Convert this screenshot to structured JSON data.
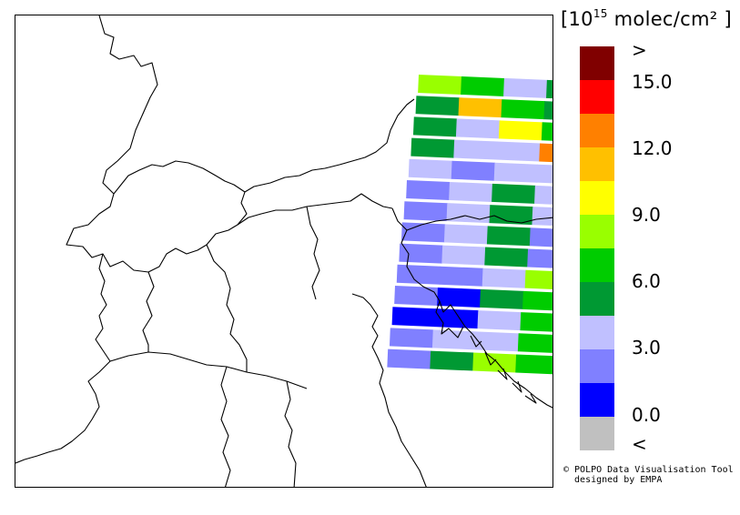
{
  "legend": {
    "title_open": "[10",
    "title_exp": "15",
    "title_rest": " molec/cm² ]",
    "colors": [
      "#800000",
      "#ff0000",
      "#ff8000",
      "#ffc000",
      "#ffff00",
      "#99ff00",
      "#00cc00",
      "#009933",
      "#c0c0ff",
      "#8080ff",
      "#0000ff",
      "#c0c0c0"
    ],
    "labels": [
      ">",
      "15.0",
      "12.0",
      "9.0",
      "6.0",
      "3.0",
      "0.0",
      "<"
    ]
  },
  "credit": {
    "line1": "© POLPO Data Visualisation Tool",
    "line2": "  designed by EMPA"
  },
  "swaths": [
    [
      "#99ff00",
      "#00cc00",
      "#c0c0ff",
      "#009933"
    ],
    [
      "#009933",
      "#ffc000",
      "#00cc00",
      "#009933"
    ],
    [
      "#009933",
      "#c0c0ff",
      "#ffff00",
      "#00cc00"
    ],
    [
      "#009933",
      "#c0c0ff",
      "#c0c0ff",
      "#ff8000"
    ],
    [
      "#c0c0ff",
      "#8080ff",
      "#c0c0ff",
      "#c0c0ff"
    ],
    [
      "#8080ff",
      "#c0c0ff",
      "#009933",
      "#c0c0ff"
    ],
    [
      "#8080ff",
      "#c0c0ff",
      "#009933",
      "#c0c0ff"
    ],
    [
      "#8080ff",
      "#c0c0ff",
      "#009933",
      "#8080ff"
    ],
    [
      "#8080ff",
      "#c0c0ff",
      "#009933",
      "#8080ff"
    ],
    [
      "#8080ff",
      "#8080ff",
      "#c0c0ff",
      "#99ff00"
    ],
    [
      "#8080ff",
      "#0000ff",
      "#009933",
      "#00cc00"
    ],
    [
      "#0000ff",
      "#0000ff",
      "#c0c0ff",
      "#00cc00"
    ],
    [
      "#8080ff",
      "#c0c0ff",
      "#c0c0ff",
      "#00cc00"
    ],
    [
      "#8080ff",
      "#009933",
      "#99ff00",
      "#00cc00"
    ]
  ]
}
